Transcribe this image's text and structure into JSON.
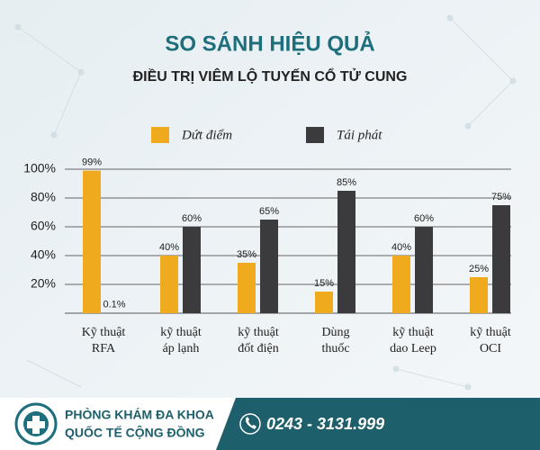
{
  "chart_data": {
    "type": "bar",
    "title": "SO SÁNH HIỆU QUẢ",
    "subtitle": "ĐIỀU TRỊ VIÊM LỘ TUYẾN CỔ TỬ CUNG",
    "categories": [
      [
        "Kỹ thuật",
        "RFA"
      ],
      [
        "kỹ thuật",
        "áp lạnh"
      ],
      [
        "kỹ thuật",
        "đốt điện"
      ],
      [
        "Dùng",
        "thuốc"
      ],
      [
        "kỹ thuật",
        "dao Leep"
      ],
      [
        "kỹ thuật",
        "OCI"
      ]
    ],
    "series": [
      {
        "name": "Dứt điểm",
        "color": "#f0aa1e",
        "values": [
          99,
          40,
          35,
          15,
          40,
          25
        ],
        "value_labels": [
          "99%",
          "40%",
          "35%",
          "15%",
          "40%",
          "25%"
        ]
      },
      {
        "name": "Tái phát",
        "color": "#3b3b3d",
        "values": [
          0.1,
          60,
          65,
          85,
          60,
          75
        ],
        "value_labels": [
          "0.1%",
          "60%",
          "65%",
          "85%",
          "60%",
          "75%"
        ]
      }
    ],
    "ylim": [
      0,
      100
    ],
    "yticks": [
      {
        "value": 20,
        "label": "20%"
      },
      {
        "value": 40,
        "label": "40%"
      },
      {
        "value": 60,
        "label": "60%"
      },
      {
        "value": 80,
        "label": "80%"
      },
      {
        "value": 100,
        "label": "100%"
      }
    ],
    "grid": true
  },
  "footer": {
    "clinic_line1": "PHÒNG KHÁM ĐA KHOA",
    "clinic_line2": "QUỐC TẾ CỘNG ĐỒNG",
    "phone": "0243 - 3131.999"
  }
}
